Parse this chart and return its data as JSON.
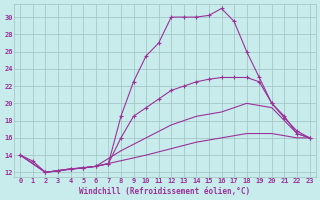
{
  "xlabel": "Windchill (Refroidissement éolien,°C)",
  "ylabel": "",
  "background_color": "#c8ecec",
  "grid_color": "#a0c0c0",
  "line_color": "#993399",
  "xlim_min": -0.5,
  "xlim_max": 23.5,
  "ylim_min": 11.5,
  "ylim_max": 31.5,
  "yticks": [
    12,
    14,
    16,
    18,
    20,
    22,
    24,
    26,
    28,
    30
  ],
  "xticks": [
    0,
    1,
    2,
    3,
    4,
    5,
    6,
    7,
    8,
    9,
    10,
    11,
    12,
    13,
    14,
    15,
    16,
    17,
    18,
    19,
    20,
    21,
    22,
    23
  ],
  "series_top_x": [
    0,
    1,
    2,
    3,
    4,
    5,
    6,
    7,
    8,
    9,
    10,
    11,
    12,
    13,
    14,
    15,
    16,
    17,
    18,
    19,
    20,
    21,
    22,
    23
  ],
  "series_top_y": [
    14,
    13.3,
    12.0,
    12.2,
    12.4,
    12.5,
    12.7,
    13.0,
    18.5,
    22.5,
    25.5,
    27.0,
    30.0,
    30.0,
    30.0,
    30.2,
    31.0,
    29.5,
    26.0,
    23.0,
    20.0,
    18.5,
    16.5,
    16.0
  ],
  "series_mid1_x": [
    0,
    2,
    3,
    4,
    5,
    6,
    7,
    8,
    9,
    10,
    11,
    12,
    13,
    14,
    15,
    16,
    17,
    18,
    19,
    20,
    21,
    22,
    23
  ],
  "series_mid1_y": [
    14,
    12.0,
    12.2,
    12.4,
    12.5,
    12.7,
    13.0,
    16.0,
    18.5,
    19.5,
    20.5,
    21.5,
    22.0,
    22.5,
    22.8,
    23.0,
    23.0,
    23.0,
    22.5,
    20.0,
    18.3,
    16.8,
    16.0
  ],
  "series_mid2_x": [
    0,
    2,
    4,
    6,
    8,
    10,
    12,
    14,
    16,
    18,
    20,
    22,
    23
  ],
  "series_mid2_y": [
    14,
    12.0,
    12.4,
    12.7,
    14.5,
    16.0,
    17.5,
    18.5,
    19.0,
    20.0,
    19.5,
    16.5,
    16.0
  ],
  "series_bot_x": [
    0,
    2,
    6,
    10,
    14,
    18,
    20,
    22,
    23
  ],
  "series_bot_y": [
    14,
    12.0,
    12.7,
    14.0,
    15.5,
    16.5,
    16.5,
    16.0,
    16.0
  ]
}
